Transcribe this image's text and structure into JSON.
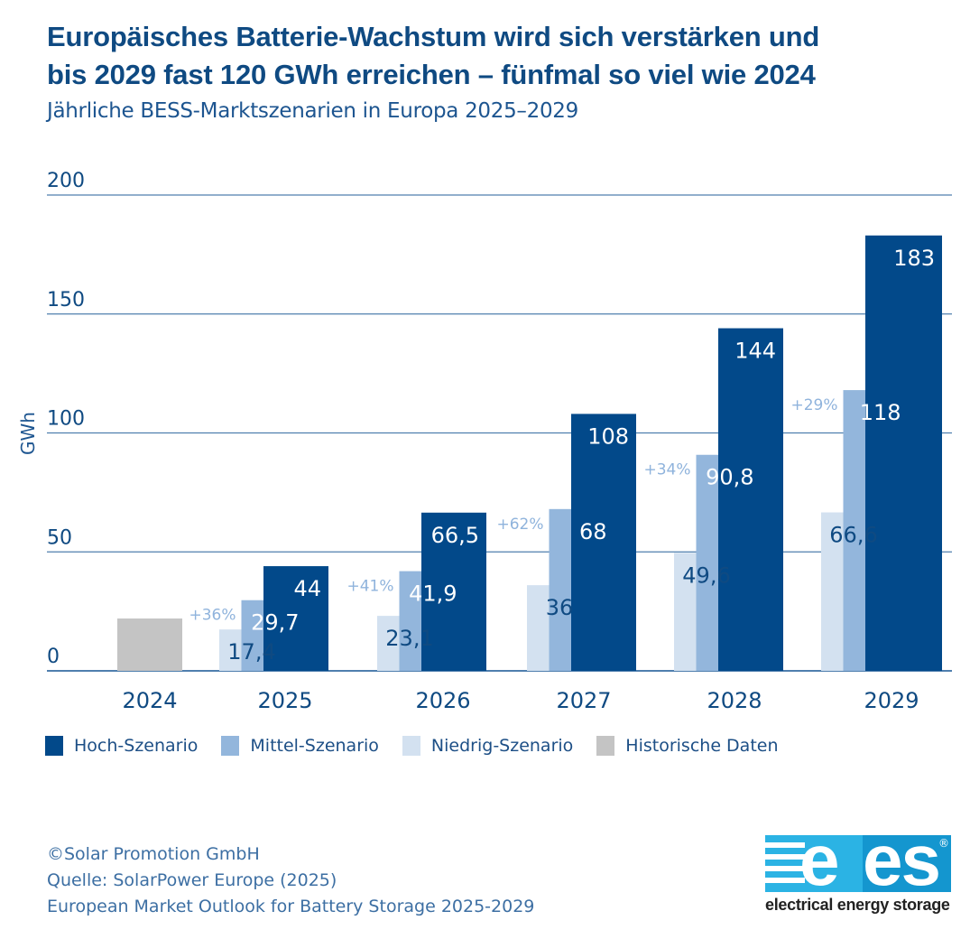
{
  "header": {
    "title_line1": "Europäisches Batterie-Wachstum wird sich verstärken und",
    "title_line2": "bis 2029 fast 120 GWh erreichen – fünfmal so viel wie 2024",
    "subtitle": "Jährliche BESS-Marktszenarien in Europa 2025–2029"
  },
  "colors": {
    "hoch": "#02498a",
    "mittel": "#93b6dc",
    "niedrig": "#d3e1f0",
    "historisch": "#c4c4c4",
    "grid": "#4f7fae",
    "text": "#0f4a82",
    "growth": "#8fb3dc"
  },
  "chart_data": {
    "type": "bar",
    "title": "Europäisches Batterie-Wachstum wird sich verstärken und bis 2029 fast 120 GWh erreichen – fünfmal so viel wie 2024",
    "subtitle": "Jährliche BESS-Marktszenarien in Europa 2025–2029",
    "xlabel": "",
    "ylabel": "GWh",
    "ylim": [
      0,
      200
    ],
    "yticks": [
      0,
      50,
      100,
      150,
      200
    ],
    "ytick_labels": [
      "0",
      "50",
      "100",
      "150",
      "200"
    ],
    "grid": true,
    "categories": [
      "2024",
      "2025",
      "2026",
      "2027",
      "2028",
      "2029"
    ],
    "series": [
      {
        "name": "Historische Daten",
        "key": "historisch",
        "values": [
          22,
          null,
          null,
          null,
          null,
          null
        ],
        "labels": [
          null,
          null,
          null,
          null,
          null,
          null
        ]
      },
      {
        "name": "Niedrig-Szenario",
        "key": "niedrig",
        "values": [
          null,
          17.4,
          23.1,
          36,
          49.6,
          66.6
        ],
        "labels": [
          null,
          "17,4",
          "23,1",
          "36",
          "49,6",
          "66,6"
        ]
      },
      {
        "name": "Mittel-Szenario",
        "key": "mittel",
        "values": [
          null,
          29.7,
          41.9,
          68,
          90.8,
          118
        ],
        "labels": [
          null,
          "29,7",
          "41,9",
          "68",
          "90,8",
          "118"
        ]
      },
      {
        "name": "Hoch-Szenario",
        "key": "hoch",
        "values": [
          null,
          44,
          66.5,
          108,
          144,
          183
        ],
        "labels": [
          null,
          "44",
          "66,5",
          "108",
          "144",
          "183"
        ]
      }
    ],
    "annotations": [
      {
        "category": "2025",
        "text": "+36%"
      },
      {
        "category": "2026",
        "text": "+41%"
      },
      {
        "category": "2027",
        "text": "+62%"
      },
      {
        "category": "2028",
        "text": "+34%"
      },
      {
        "category": "2029",
        "text": "+29%"
      }
    ],
    "legend": {
      "position": "bottom-left",
      "entries": [
        "Hoch-Szenario",
        "Mittel-Szenario",
        "Niedrig-Szenario",
        "Historische Daten"
      ]
    }
  },
  "legend": {
    "items": [
      {
        "label": "Hoch-Szenario",
        "color": "#02498a"
      },
      {
        "label": "Mittel-Szenario",
        "color": "#93b6dc"
      },
      {
        "label": "Niedrig-Szenario",
        "color": "#d3e1f0"
      },
      {
        "label": "Historische Daten",
        "color": "#c4c4c4"
      }
    ]
  },
  "footer": {
    "copyright": "©Solar Promotion GmbH",
    "source": "Quelle: SolarPower Europe (2025)",
    "publication": "European Market Outlook for Battery Storage 2025-2029"
  },
  "logo": {
    "letters_e": "e",
    "letters_es": "es",
    "registered": "®",
    "tagline": "electrical energy storage"
  }
}
